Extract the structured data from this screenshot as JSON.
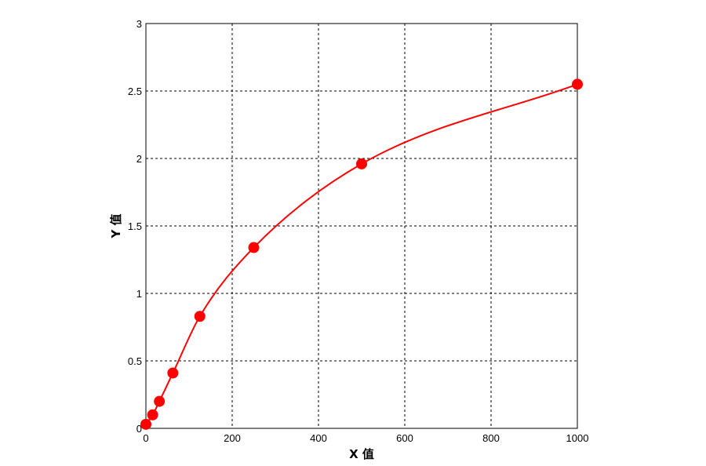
{
  "chart_data": {
    "type": "scatter",
    "title": "",
    "xlabel": "X 值",
    "ylabel": "Y 值",
    "xlim": [
      0,
      1000
    ],
    "ylim": [
      0,
      3
    ],
    "x_ticks": [
      "0",
      "200",
      "400",
      "600",
      "800",
      "1000"
    ],
    "y_ticks": [
      "0",
      "0.5",
      "1",
      "1.5",
      "2",
      "2.5",
      "3"
    ],
    "grid": true,
    "legend": "none",
    "colors": {
      "series": "#ff0000",
      "grid": "#000000",
      "frame": "#000000"
    },
    "series": [
      {
        "points": [
          {
            "x": 0,
            "y": 0.03
          },
          {
            "x": 15.6,
            "y": 0.1
          },
          {
            "x": 31.25,
            "y": 0.2
          },
          {
            "x": 62.5,
            "y": 0.41
          },
          {
            "x": 125,
            "y": 0.83
          },
          {
            "x": 250,
            "y": 1.34
          },
          {
            "x": 500,
            "y": 1.96
          },
          {
            "x": 1000,
            "y": 2.55
          }
        ]
      }
    ],
    "fit_curve": true
  }
}
